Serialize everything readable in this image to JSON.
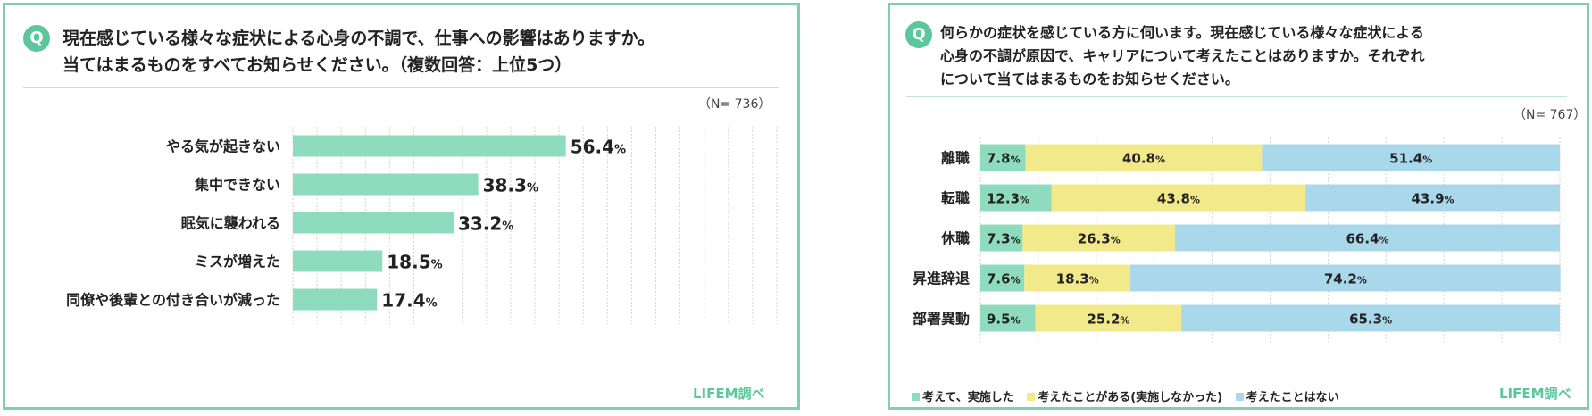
{
  "colors": {
    "frame": "#7fd0ad",
    "accent": "#5cc69d",
    "bar": "#8fdbc0",
    "seg_did": "#8fdbc0",
    "seg_considered": "#f2e98a",
    "seg_never": "#a9d8ea",
    "grid": "#d5d5d5"
  },
  "left": {
    "badge": "Q",
    "question_lines": [
      "現在感じている様々な症状による心身の不調で、仕事への影響はありますか。",
      "当てはまるものをすべてお知らせください。（複数回答：上位5つ）"
    ],
    "n_label": "（N= 736）",
    "credit": "LIFEM調べ",
    "chart_data": {
      "type": "bar",
      "orientation": "horizontal",
      "categories": [
        "やる気が起きない",
        "集中できない",
        "眠気に襲われる",
        "ミスが増えた",
        "同僚や後輩との付き合いが減った"
      ],
      "values": [
        56.4,
        38.3,
        33.2,
        18.5,
        17.4
      ],
      "value_labels": [
        "56.4",
        "38.3",
        "33.2",
        "18.5",
        "17.4"
      ],
      "unit": "%",
      "xlim": [
        0,
        100
      ],
      "grid": true
    }
  },
  "right": {
    "badge": "Q",
    "question_lines": [
      "何らかの症状を感じている方に伺います。現在感じている様々な症状による",
      "心身の不調が原因で、キャリアについて考えたことはありますか。それぞれ",
      "について当てはまるものをお知らせください。"
    ],
    "n_label": "（N= 767）",
    "credit": "LIFEM調べ",
    "chart_data": {
      "type": "bar",
      "orientation": "horizontal",
      "stacked": true,
      "categories": [
        "離職",
        "転職",
        "休職",
        "昇進辞退",
        "部署異動"
      ],
      "series": [
        {
          "name": "考えて、実施した",
          "values": [
            7.8,
            12.3,
            7.3,
            7.6,
            9.5
          ]
        },
        {
          "name": "考えたことがある(実施しなかった)",
          "values": [
            40.8,
            43.8,
            26.3,
            18.3,
            25.2
          ]
        },
        {
          "name": "考えたことはない",
          "values": [
            51.4,
            43.9,
            66.4,
            74.2,
            65.3
          ]
        }
      ],
      "unit": "%",
      "xlim": [
        0,
        100
      ],
      "grid": true,
      "legend_position": "bottom-left"
    }
  }
}
